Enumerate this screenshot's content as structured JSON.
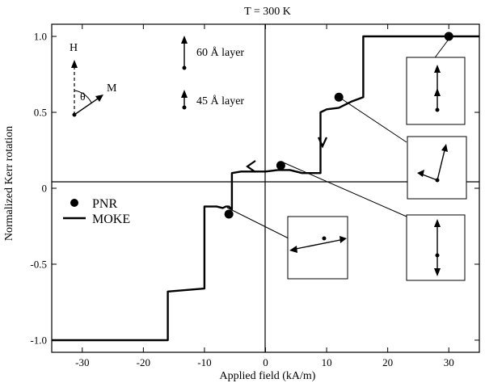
{
  "chart_data": {
    "type": "line",
    "title": "T = 300 K",
    "xlabel": "Applied field (kA/m)",
    "ylabel": "Normalized Kerr rotation",
    "xlim": [
      -35,
      35
    ],
    "ylim": [
      -1.08,
      1.08
    ],
    "x_ticks": [
      -30,
      -20,
      -10,
      0,
      10,
      20,
      30
    ],
    "x_tick_labels": [
      "-30",
      "-20",
      "-10",
      "0",
      "10",
      "20",
      "30"
    ],
    "y_ticks": [
      -1.0,
      -0.5,
      0,
      0.5,
      1.0
    ],
    "y_tick_labels": [
      "-1.0",
      "-0.5",
      "0",
      "0.5",
      "1.0"
    ],
    "grid": false,
    "legend_position": "left",
    "series": [
      {
        "name": "MOKE",
        "style": "line",
        "color": "#000000",
        "x": [
          -35,
          -16,
          -16,
          -10,
          -10,
          -9,
          -8,
          -7,
          -6.5,
          -6,
          -5.5,
          -5.5,
          -4,
          0,
          2,
          4,
          6,
          9,
          9,
          10,
          12,
          14,
          16,
          16,
          18,
          35
        ],
        "y": [
          -1.0,
          -1.0,
          -0.68,
          -0.66,
          -0.12,
          -0.12,
          -0.12,
          -0.13,
          -0.12,
          -0.12,
          -0.14,
          0.1,
          0.11,
          0.11,
          0.12,
          0.12,
          0.1,
          0.1,
          0.5,
          0.52,
          0.53,
          0.57,
          0.6,
          1.0,
          1.0,
          1.0
        ]
      },
      {
        "name": "PNR",
        "style": "points",
        "color": "#000000",
        "x": [
          -6,
          2.5,
          12,
          30
        ],
        "y": [
          -0.17,
          0.15,
          0.6,
          1.0
        ]
      }
    ],
    "annotations": {
      "top_left_vectors": {
        "h_label": "H",
        "m_label": "M",
        "theta_label": "θ"
      },
      "layer_key": [
        {
          "label": "60 Å layer"
        },
        {
          "label": "45 Å layer"
        }
      ]
    }
  }
}
